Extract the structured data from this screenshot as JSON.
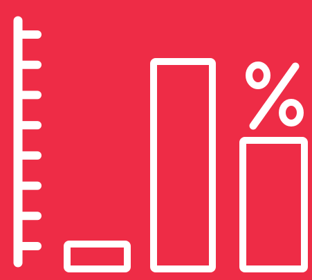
{
  "icon": "percentage-bar-chart-icon",
  "colors": {
    "background": "#EE2C46",
    "stroke": "#FFFFFF"
  },
  "chart_data": {
    "type": "bar",
    "categories": [
      "",
      "",
      ""
    ],
    "values": [
      0.12,
      1.0,
      0.62
    ],
    "symbol": "%",
    "axis_ticks": 8
  }
}
